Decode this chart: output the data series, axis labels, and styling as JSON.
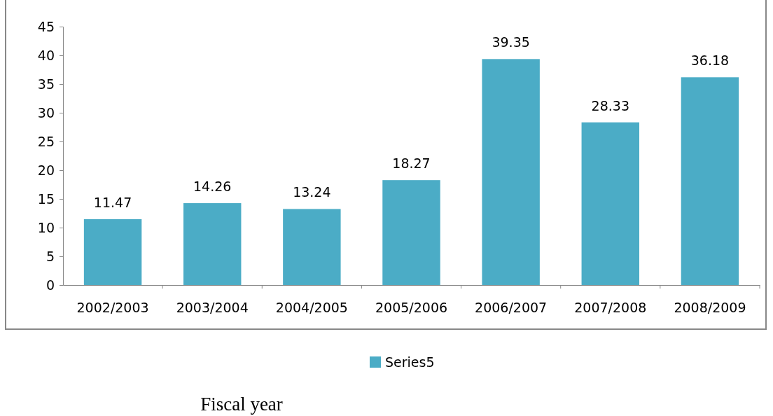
{
  "chart_data": {
    "type": "bar",
    "xlabel": "Fiscal year",
    "categories": [
      "2002/2003",
      "2003/2004",
      "2004/2005",
      "2005/2006",
      "2006/2007",
      "2007/2008",
      "2008/2009"
    ],
    "series": [
      {
        "name": "Series5",
        "color": "#4bacc6",
        "values": [
          11.47,
          14.26,
          13.24,
          18.27,
          39.35,
          28.33,
          36.18
        ]
      }
    ],
    "ylim": [
      0,
      45
    ],
    "yticks": [
      0,
      5,
      10,
      15,
      20,
      25,
      30,
      35,
      40,
      45
    ],
    "data_labels": true,
    "legend": "bottom",
    "grid": false
  }
}
